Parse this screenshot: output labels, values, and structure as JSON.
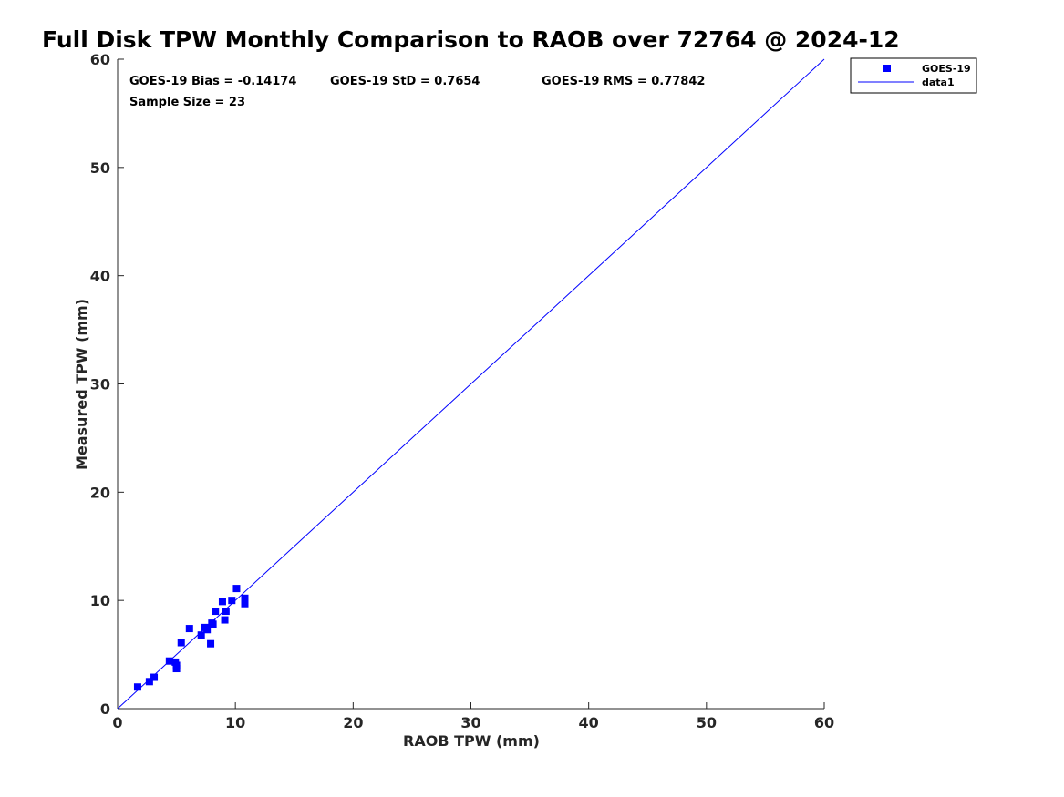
{
  "chart_data": {
    "type": "scatter",
    "title": "Full Disk TPW Monthly Comparison to RAOB over 72764 @ 2024-12",
    "xlabel": "RAOB TPW (mm)",
    "ylabel": "Measured TPW (mm)",
    "xlim": [
      0,
      60
    ],
    "ylim": [
      0,
      60
    ],
    "xticks": [
      "0",
      "10",
      "20",
      "30",
      "40",
      "50",
      "60"
    ],
    "yticks": [
      "0",
      "10",
      "20",
      "30",
      "40",
      "50",
      "60"
    ],
    "grid": false,
    "legend_position": "outside-top-right",
    "annotations": {
      "bias": "GOES-19 Bias = -0.14174",
      "std": "GOES-19 StD = 0.7654",
      "rms": "GOES-19 RMS = 0.77842",
      "sample": "Sample Size = 23"
    },
    "series": [
      {
        "name": "GOES-19",
        "kind": "scatter",
        "marker": "square",
        "color": "#0000ff",
        "points": [
          [
            1.7,
            2.0
          ],
          [
            2.7,
            2.5
          ],
          [
            3.1,
            2.9
          ],
          [
            4.4,
            4.4
          ],
          [
            4.9,
            4.3
          ],
          [
            5.0,
            3.7
          ],
          [
            5.0,
            4.0
          ],
          [
            5.4,
            6.1
          ],
          [
            6.1,
            7.4
          ],
          [
            7.1,
            6.8
          ],
          [
            7.4,
            7.5
          ],
          [
            7.6,
            7.3
          ],
          [
            7.9,
            6.0
          ],
          [
            8.0,
            7.9
          ],
          [
            8.1,
            7.8
          ],
          [
            8.3,
            9.0
          ],
          [
            8.9,
            9.9
          ],
          [
            9.1,
            8.2
          ],
          [
            9.2,
            9.0
          ],
          [
            9.7,
            10.0
          ],
          [
            10.1,
            11.1
          ],
          [
            10.8,
            10.2
          ],
          [
            10.8,
            9.7
          ]
        ]
      },
      {
        "name": "data1",
        "kind": "line",
        "color": "#0000ff",
        "x": [
          0,
          60
        ],
        "y": [
          0,
          60
        ]
      }
    ]
  }
}
